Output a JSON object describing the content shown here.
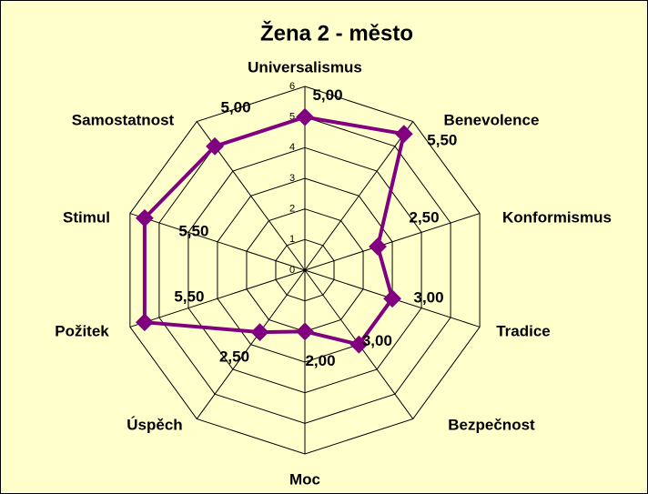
{
  "chart_data": {
    "type": "radar",
    "title": "Žena 2 - město",
    "categories": [
      "Universalismus",
      "Benevolence",
      "Konformismus",
      "Tradice",
      "Bezpečnost",
      "Moc",
      "Úspěch",
      "Požitek",
      "Stimul",
      "Samostatnost"
    ],
    "values": [
      5.0,
      5.5,
      2.5,
      3.0,
      3.0,
      2.0,
      2.5,
      5.5,
      5.5,
      5.0
    ],
    "value_labels": [
      "5,00",
      "5,50",
      "2,50",
      "3,00",
      "3,00",
      "2,00",
      "2,50",
      "5,50",
      "5,50",
      "5,00"
    ],
    "color": "#800080",
    "ylim": [
      0,
      6
    ],
    "yticks": [
      0,
      1,
      2,
      3,
      4,
      5,
      6
    ],
    "grid": true
  }
}
